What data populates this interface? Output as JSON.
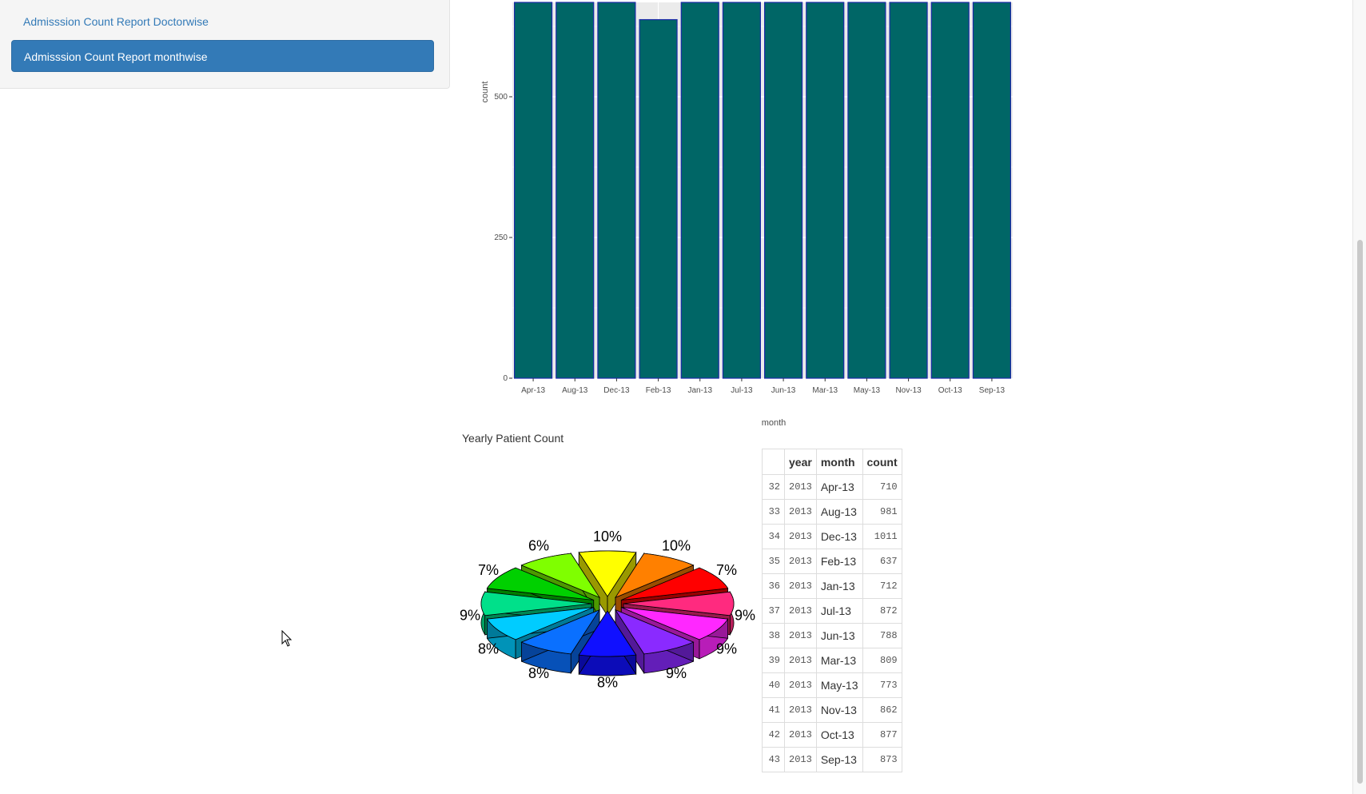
{
  "sidebar": {
    "items": [
      {
        "label": "Admisssion Count Report Doctorwise",
        "active": false
      },
      {
        "label": "Admisssion Count Report monthwise",
        "active": true
      }
    ]
  },
  "bar_chart": {
    "chart_data": {
      "type": "bar",
      "categories": [
        "Apr-13",
        "Aug-13",
        "Dec-13",
        "Feb-13",
        "Jan-13",
        "Jul-13",
        "Jun-13",
        "Mar-13",
        "May-13",
        "Nov-13",
        "Oct-13",
        "Sep-13"
      ],
      "values": [
        710,
        981,
        1011,
        637,
        712,
        872,
        788,
        809,
        773,
        862,
        877,
        873
      ],
      "xlabel": "month",
      "ylabel": "count",
      "yticks": [
        "0",
        "250",
        "500"
      ],
      "visible_ylim": [
        0,
        660
      ],
      "bar_color": "#006666",
      "bar_border": "#1c2aa8",
      "panel_bg": "#ebebeb"
    }
  },
  "caption": "Yearly Patient Count",
  "pie_chart": {
    "chart_data": {
      "type": "pie",
      "style": "3d-exploded",
      "slices": [
        {
          "label": "10%",
          "color": "#ffff00"
        },
        {
          "label": "10%",
          "color": "#ff8000"
        },
        {
          "label": "7%",
          "color": "#ff0000"
        },
        {
          "label": "9%",
          "color": "#ff2a7f"
        },
        {
          "label": "9%",
          "color": "#ff28ff"
        },
        {
          "label": "9%",
          "color": "#8a2aff"
        },
        {
          "label": "8%",
          "color": "#1010ff"
        },
        {
          "label": "8%",
          "color": "#0a70ff"
        },
        {
          "label": "8%",
          "color": "#00ccff"
        },
        {
          "label": "9%",
          "color": "#00e08a"
        },
        {
          "label": "7%",
          "color": "#00d000"
        },
        {
          "label": "6%",
          "color": "#7fff00"
        }
      ]
    }
  },
  "table": {
    "headers": [
      "",
      "year",
      "month",
      "count"
    ],
    "rows": [
      [
        "32",
        "2013",
        "Apr-13",
        "710"
      ],
      [
        "33",
        "2013",
        "Aug-13",
        "981"
      ],
      [
        "34",
        "2013",
        "Dec-13",
        "1011"
      ],
      [
        "35",
        "2013",
        "Feb-13",
        "637"
      ],
      [
        "36",
        "2013",
        "Jan-13",
        "712"
      ],
      [
        "37",
        "2013",
        "Jul-13",
        "872"
      ],
      [
        "38",
        "2013",
        "Jun-13",
        "788"
      ],
      [
        "39",
        "2013",
        "Mar-13",
        "809"
      ],
      [
        "40",
        "2013",
        "May-13",
        "773"
      ],
      [
        "41",
        "2013",
        "Nov-13",
        "862"
      ],
      [
        "42",
        "2013",
        "Oct-13",
        "877"
      ],
      [
        "43",
        "2013",
        "Sep-13",
        "873"
      ]
    ]
  },
  "icons": {
    "cursor": "mouse-pointer-icon"
  }
}
